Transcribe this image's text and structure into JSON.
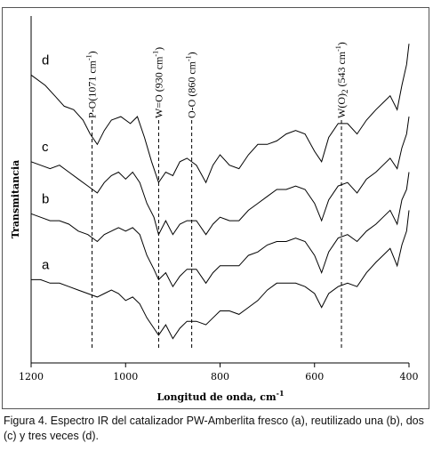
{
  "chart_data": {
    "type": "line",
    "xlabel": "Longitud de onda, cm",
    "xlabel_sup": "-1",
    "ylabel": "Transmitancia",
    "xlim": [
      1200,
      400
    ],
    "x_ticks": [
      1200,
      1000,
      800,
      600,
      400
    ],
    "x_tick_labels": [
      "1200",
      "1000",
      "800",
      "600",
      "400"
    ],
    "grid": false,
    "y_ticks_shown": false,
    "series": [
      {
        "name": "d",
        "points": [
          [
            1200,
            0.83
          ],
          [
            1170,
            0.8
          ],
          [
            1150,
            0.77
          ],
          [
            1130,
            0.74
          ],
          [
            1110,
            0.73
          ],
          [
            1090,
            0.7
          ],
          [
            1075,
            0.66
          ],
          [
            1060,
            0.63
          ],
          [
            1045,
            0.67
          ],
          [
            1030,
            0.7
          ],
          [
            1010,
            0.71
          ],
          [
            990,
            0.69
          ],
          [
            975,
            0.71
          ],
          [
            960,
            0.65
          ],
          [
            945,
            0.58
          ],
          [
            930,
            0.52
          ],
          [
            915,
            0.55
          ],
          [
            900,
            0.54
          ],
          [
            885,
            0.58
          ],
          [
            870,
            0.59
          ],
          [
            850,
            0.57
          ],
          [
            830,
            0.52
          ],
          [
            815,
            0.57
          ],
          [
            800,
            0.6
          ],
          [
            780,
            0.57
          ],
          [
            760,
            0.56
          ],
          [
            740,
            0.6
          ],
          [
            720,
            0.63
          ],
          [
            700,
            0.63
          ],
          [
            680,
            0.64
          ],
          [
            660,
            0.66
          ],
          [
            640,
            0.67
          ],
          [
            620,
            0.66
          ],
          [
            600,
            0.61
          ],
          [
            585,
            0.58
          ],
          [
            570,
            0.65
          ],
          [
            550,
            0.69
          ],
          [
            530,
            0.69
          ],
          [
            510,
            0.66
          ],
          [
            490,
            0.7
          ],
          [
            470,
            0.73
          ],
          [
            455,
            0.75
          ],
          [
            440,
            0.77
          ],
          [
            425,
            0.73
          ],
          [
            415,
            0.8
          ],
          [
            405,
            0.86
          ],
          [
            400,
            0.92
          ]
        ]
      },
      {
        "name": "c",
        "points": [
          [
            1200,
            0.58
          ],
          [
            1180,
            0.57
          ],
          [
            1160,
            0.56
          ],
          [
            1140,
            0.57
          ],
          [
            1120,
            0.55
          ],
          [
            1100,
            0.53
          ],
          [
            1080,
            0.51
          ],
          [
            1060,
            0.49
          ],
          [
            1045,
            0.52
          ],
          [
            1030,
            0.54
          ],
          [
            1015,
            0.55
          ],
          [
            1000,
            0.53
          ],
          [
            985,
            0.55
          ],
          [
            970,
            0.52
          ],
          [
            955,
            0.46
          ],
          [
            940,
            0.42
          ],
          [
            930,
            0.37
          ],
          [
            915,
            0.41
          ],
          [
            900,
            0.37
          ],
          [
            885,
            0.4
          ],
          [
            870,
            0.41
          ],
          [
            850,
            0.41
          ],
          [
            830,
            0.37
          ],
          [
            815,
            0.4
          ],
          [
            800,
            0.42
          ],
          [
            780,
            0.41
          ],
          [
            760,
            0.41
          ],
          [
            740,
            0.44
          ],
          [
            720,
            0.46
          ],
          [
            700,
            0.48
          ],
          [
            680,
            0.5
          ],
          [
            660,
            0.5
          ],
          [
            640,
            0.51
          ],
          [
            620,
            0.5
          ],
          [
            600,
            0.46
          ],
          [
            585,
            0.41
          ],
          [
            570,
            0.47
          ],
          [
            550,
            0.51
          ],
          [
            530,
            0.52
          ],
          [
            510,
            0.49
          ],
          [
            490,
            0.53
          ],
          [
            470,
            0.55
          ],
          [
            455,
            0.57
          ],
          [
            440,
            0.59
          ],
          [
            425,
            0.56
          ],
          [
            415,
            0.62
          ],
          [
            405,
            0.66
          ],
          [
            400,
            0.71
          ]
        ]
      },
      {
        "name": "b",
        "points": [
          [
            1200,
            0.43
          ],
          [
            1180,
            0.42
          ],
          [
            1160,
            0.41
          ],
          [
            1140,
            0.41
          ],
          [
            1120,
            0.4
          ],
          [
            1100,
            0.38
          ],
          [
            1080,
            0.37
          ],
          [
            1060,
            0.35
          ],
          [
            1045,
            0.37
          ],
          [
            1030,
            0.38
          ],
          [
            1015,
            0.39
          ],
          [
            1000,
            0.38
          ],
          [
            985,
            0.39
          ],
          [
            970,
            0.37
          ],
          [
            955,
            0.31
          ],
          [
            940,
            0.27
          ],
          [
            930,
            0.24
          ],
          [
            915,
            0.26
          ],
          [
            900,
            0.22
          ],
          [
            885,
            0.25
          ],
          [
            870,
            0.27
          ],
          [
            850,
            0.27
          ],
          [
            830,
            0.23
          ],
          [
            815,
            0.26
          ],
          [
            800,
            0.28
          ],
          [
            780,
            0.28
          ],
          [
            760,
            0.28
          ],
          [
            740,
            0.31
          ],
          [
            720,
            0.32
          ],
          [
            700,
            0.34
          ],
          [
            680,
            0.35
          ],
          [
            660,
            0.35
          ],
          [
            640,
            0.36
          ],
          [
            620,
            0.35
          ],
          [
            600,
            0.31
          ],
          [
            585,
            0.26
          ],
          [
            570,
            0.32
          ],
          [
            550,
            0.36
          ],
          [
            530,
            0.37
          ],
          [
            510,
            0.35
          ],
          [
            490,
            0.38
          ],
          [
            470,
            0.4
          ],
          [
            455,
            0.42
          ],
          [
            440,
            0.44
          ],
          [
            425,
            0.4
          ],
          [
            415,
            0.47
          ],
          [
            405,
            0.5
          ],
          [
            400,
            0.55
          ]
        ]
      },
      {
        "name": "a",
        "points": [
          [
            1200,
            0.24
          ],
          [
            1180,
            0.24
          ],
          [
            1160,
            0.23
          ],
          [
            1140,
            0.23
          ],
          [
            1120,
            0.22
          ],
          [
            1100,
            0.21
          ],
          [
            1080,
            0.2
          ],
          [
            1060,
            0.19
          ],
          [
            1045,
            0.2
          ],
          [
            1030,
            0.21
          ],
          [
            1015,
            0.2
          ],
          [
            1000,
            0.18
          ],
          [
            985,
            0.19
          ],
          [
            970,
            0.17
          ],
          [
            955,
            0.13
          ],
          [
            940,
            0.1
          ],
          [
            930,
            0.08
          ],
          [
            915,
            0.11
          ],
          [
            900,
            0.07
          ],
          [
            885,
            0.1
          ],
          [
            870,
            0.12
          ],
          [
            850,
            0.12
          ],
          [
            830,
            0.11
          ],
          [
            815,
            0.13
          ],
          [
            800,
            0.15
          ],
          [
            780,
            0.15
          ],
          [
            760,
            0.14
          ],
          [
            740,
            0.16
          ],
          [
            720,
            0.18
          ],
          [
            700,
            0.21
          ],
          [
            680,
            0.23
          ],
          [
            660,
            0.23
          ],
          [
            640,
            0.23
          ],
          [
            620,
            0.22
          ],
          [
            600,
            0.2
          ],
          [
            585,
            0.16
          ],
          [
            570,
            0.2
          ],
          [
            550,
            0.22
          ],
          [
            530,
            0.23
          ],
          [
            510,
            0.22
          ],
          [
            490,
            0.26
          ],
          [
            470,
            0.29
          ],
          [
            455,
            0.31
          ],
          [
            440,
            0.33
          ],
          [
            425,
            0.28
          ],
          [
            415,
            0.34
          ],
          [
            405,
            0.38
          ],
          [
            400,
            0.44
          ]
        ]
      }
    ],
    "annotations": [
      {
        "x": 1071,
        "label": "P-O(1071 cm",
        "sup": "-1",
        "close": ")"
      },
      {
        "x": 930,
        "label": "W=O (930 cm",
        "sup": "-1",
        "close": ")"
      },
      {
        "x": 860,
        "label": "O-O (860 cm",
        "sup": "-1",
        "close": ")"
      },
      {
        "x": 543,
        "label": "W(O)",
        "sub": "2",
        "label2": " (543 cm",
        "sup": "-1",
        "close": ")"
      }
    ]
  },
  "caption": "Figura 4. Espectro IR del catalizador PW-Amberlita fresco (a), reutilizado una (b), dos (c) y tres veces (d)."
}
